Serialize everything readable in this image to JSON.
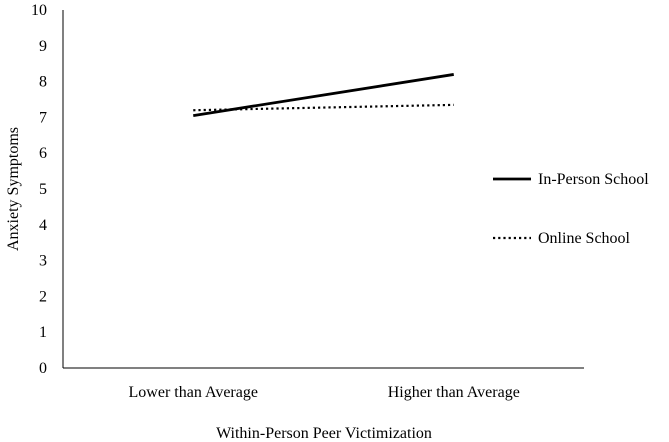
{
  "chart_data": {
    "type": "line",
    "title": "",
    "xlabel": "Within-Person Peer Victimization",
    "ylabel": "Anxiety Symptoms",
    "categories": [
      "Lower than Average",
      "Higher than Average"
    ],
    "ylim": [
      0,
      10
    ],
    "yticks": [
      "0",
      "1",
      "2",
      "3",
      "4",
      "5",
      "6",
      "7",
      "8",
      "9",
      "10"
    ],
    "grid": false,
    "legend_position": "right",
    "series": [
      {
        "name": "In-Person School",
        "values": [
          7.05,
          8.2
        ],
        "style": "solid",
        "color": "#000000"
      },
      {
        "name": "Online School",
        "values": [
          7.2,
          7.35
        ],
        "style": "dotted",
        "color": "#000000"
      }
    ]
  }
}
